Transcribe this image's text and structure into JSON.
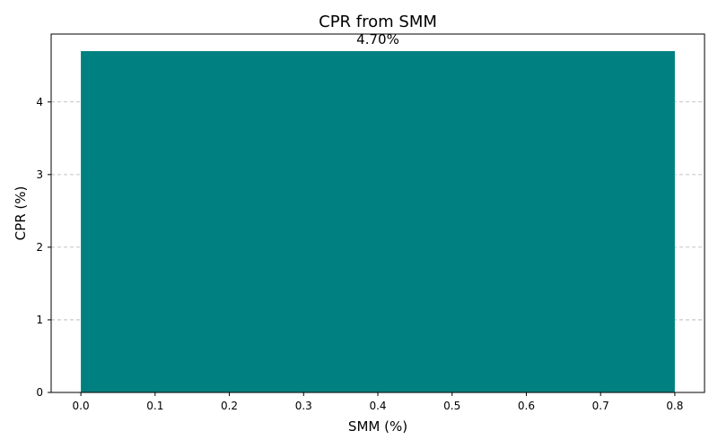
{
  "chart_data": {
    "type": "bar",
    "title": "CPR from SMM",
    "xlabel": "SMM (%)",
    "ylabel": "CPR (%)",
    "bars": [
      {
        "x_start": 0.0,
        "x_end": 0.8,
        "value": 4.7,
        "label": "4.70%"
      }
    ],
    "xlim": [
      -0.04,
      0.84
    ],
    "ylim": [
      0,
      4.935
    ],
    "xticks": [
      0.0,
      0.1,
      0.2,
      0.3,
      0.4,
      0.5,
      0.6,
      0.7,
      0.8
    ],
    "xtick_labels": [
      "0.0",
      "0.1",
      "0.2",
      "0.3",
      "0.4",
      "0.5",
      "0.6",
      "0.7",
      "0.8"
    ],
    "yticks": [
      0,
      1,
      2,
      3,
      4
    ],
    "ytick_labels": [
      "0",
      "1",
      "2",
      "3",
      "4"
    ],
    "grid": "y-dashed",
    "bar_color": "#008080"
  }
}
